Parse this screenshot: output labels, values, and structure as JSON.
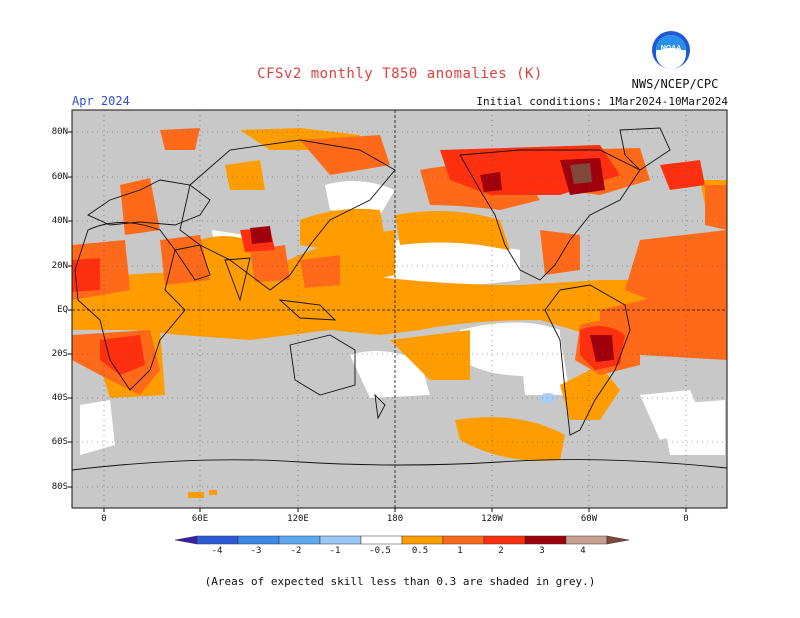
{
  "header": {
    "title": "CFSv2 monthly T850 anomalies (K)",
    "agency": "NWS/NCEP/CPC",
    "logo_text": "NOAA",
    "month": "Apr 2024",
    "initial_conditions": "Initial conditions: 1Mar2024-10Mar2024"
  },
  "axes": {
    "lat_labels": [
      "80N",
      "60N",
      "40N",
      "20N",
      "EQ",
      "20S",
      "40S",
      "60S",
      "80S"
    ],
    "lon_labels": [
      "0",
      "60E",
      "120E",
      "180",
      "120W",
      "60W",
      "0"
    ]
  },
  "colorbar": {
    "tick_labels": [
      "-4",
      "-3",
      "-2",
      "-1",
      "-0.5",
      "0.5",
      "1",
      "2",
      "3",
      "4"
    ],
    "colors": [
      "#3a1fb0",
      "#2d5ad8",
      "#3b8ae8",
      "#5ea8f0",
      "#9cc8f8",
      "#ffffff",
      "#ff9c00",
      "#ff6a1a",
      "#ff3010",
      "#a0000c",
      "#c8a090",
      "#804838"
    ]
  },
  "footnote": "(Areas of expected skill less than 0.3 are shaded in grey.)",
  "colors": {
    "low_skill": "#c8c8c8",
    "anom_05_1": "#ff9c00",
    "anom_1_2": "#ff6a1a",
    "anom_2_3": "#ff3010",
    "anom_3_4": "#a0000c",
    "anom_cool": "#a8cef8",
    "title": "#e0403c",
    "month": "#3050d8"
  }
}
